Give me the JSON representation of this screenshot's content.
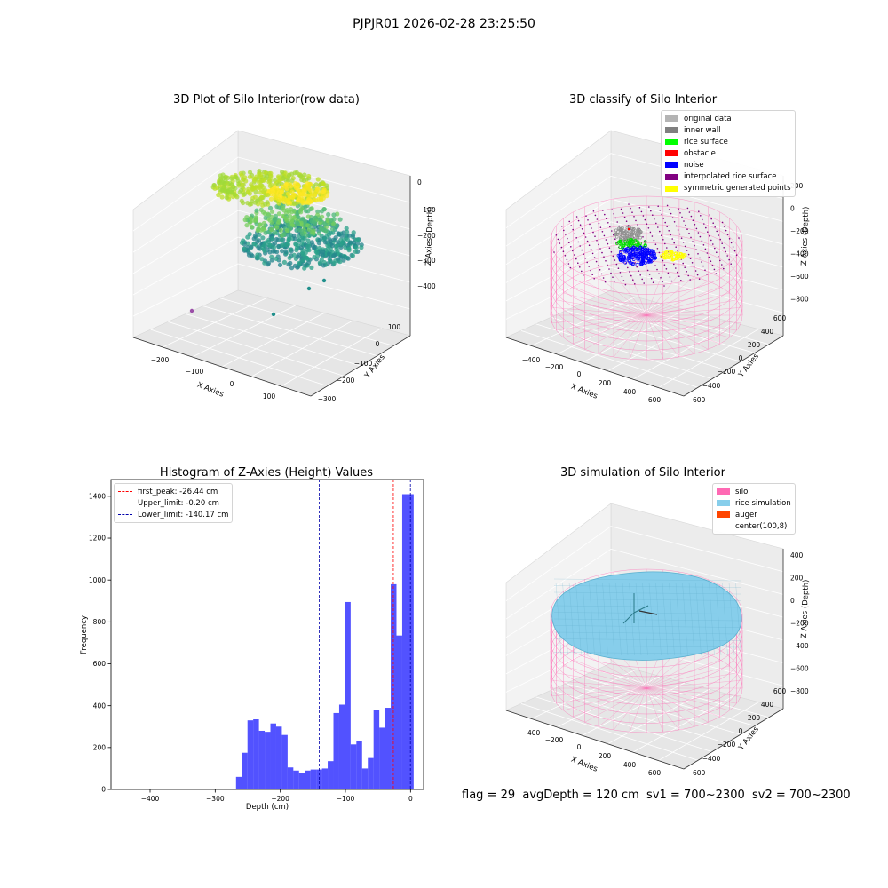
{
  "suptitle": "PJPJR01 2026-02-28 23:25:50",
  "footer": "flag = 29  avgDepth = 120 cm  sv1 = 700~2300  sv2 = 700~2300",
  "colors": {
    "silo_pink": "#ff69b4",
    "rice_blue": "#87ceeb",
    "hist_blue": "#0000ff",
    "peak_red": "#ff0000",
    "limit_blue": "#0000aa"
  },
  "chart_data": [
    {
      "id": "raw",
      "type": "scatter",
      "title": "3D Plot of Silo Interior(row data)",
      "xlabel": "X Axies",
      "ylabel": "Y Axies",
      "zlabel": "Z Axies (Depth)",
      "x_ticks": [
        "−200",
        "−100",
        "0",
        "100"
      ],
      "y_ticks": [
        "100",
        "0",
        "−100",
        "−200",
        "−300"
      ],
      "z_ticks": [
        "0",
        "−100",
        "−200",
        "−300",
        "−400"
      ],
      "xlim": [
        -280,
        170
      ],
      "ylim": [
        -330,
        180
      ],
      "zlim": [
        -440,
        20
      ],
      "colormap": "viridis (by depth)",
      "layers": [
        {
          "name": "upper surface",
          "color": "#d6e32a",
          "cx": -40,
          "cy": 40,
          "z": -30,
          "rx": 120,
          "ry": 90
        },
        {
          "name": "middle layer",
          "color": "#4fb87a",
          "cx": -20,
          "cy": 30,
          "z": -200,
          "rx": 90,
          "ry": 70
        },
        {
          "name": "lower layer",
          "color": "#25858e",
          "cx": 0,
          "cy": 0,
          "z": -290,
          "rx": 110,
          "ry": 80
        }
      ],
      "outliers": [
        {
          "x": -270,
          "y": 60,
          "z": -400,
          "color": "#9b4fa8"
        },
        {
          "x": 20,
          "y": -140,
          "z": -300,
          "color": "#21908c"
        },
        {
          "x": 70,
          "y": -60,
          "z": -330,
          "color": "#21908c"
        },
        {
          "x": 110,
          "y": -20,
          "z": -320,
          "color": "#21908c"
        }
      ]
    },
    {
      "id": "classify",
      "type": "scatter",
      "title": "3D classify of Silo Interior",
      "xlabel": "X Axies",
      "ylabel": "Y Axies",
      "zlabel": "Z Axies (Depth)",
      "x_ticks": [
        "−400",
        "−200",
        "0",
        "200",
        "400",
        "600"
      ],
      "y_ticks": [
        "600",
        "400",
        "200",
        "0",
        "−200",
        "−400",
        "−600"
      ],
      "z_ticks": [
        "200",
        "0",
        "−200",
        "−400",
        "−600",
        "−800"
      ],
      "xlim": [
        -500,
        700
      ],
      "ylim": [
        -650,
        650
      ],
      "zlim": [
        -900,
        300
      ],
      "legend": [
        {
          "label": "original data",
          "color": "#b4b4b4"
        },
        {
          "label": "inner wall",
          "color": "#808080"
        },
        {
          "label": "rice surface",
          "color": "#00ff00"
        },
        {
          "label": "obstacle",
          "color": "#ff0000"
        },
        {
          "label": "noise",
          "color": "#0000ff"
        },
        {
          "label": "interpolated rice surface",
          "color": "#800080"
        },
        {
          "label": "symmetric generated points",
          "color": "#ffff00"
        }
      ]
    },
    {
      "id": "hist",
      "type": "bar",
      "title": "Histogram of Z-Axies (Height) Values",
      "xlabel": "Depth (cm)",
      "ylabel": "Frequency",
      "xlim": [
        -460,
        20
      ],
      "ylim": [
        0,
        1480
      ],
      "x_ticks": [
        -400,
        -300,
        -200,
        -100,
        0
      ],
      "y_ticks": [
        0,
        200,
        400,
        600,
        800,
        1000,
        1200,
        1400
      ],
      "bin_width": 8.8,
      "bin_starts": [
        -268,
        -259.2,
        -250.4,
        -241.6,
        -232.8,
        -224,
        -215.2,
        -206.4,
        -197.6,
        -188.8,
        -180,
        -171.2,
        -162.4,
        -153.6,
        -144.8,
        -136,
        -127.2,
        -118.4,
        -109.6,
        -100.8,
        -92,
        -83.2,
        -74.4,
        -65.6,
        -56.8,
        -48,
        -39.2,
        -30.4,
        -21.6,
        -12.8,
        -4
      ],
      "values": [
        60,
        175,
        330,
        335,
        280,
        275,
        315,
        300,
        260,
        105,
        90,
        80,
        90,
        95,
        95,
        100,
        135,
        365,
        405,
        895,
        215,
        230,
        100,
        150,
        380,
        295,
        390,
        980,
        735,
        1410,
        1410
      ],
      "vlines": [
        {
          "label": "first_peak: -26.44 cm",
          "x": -26.44,
          "color": "#ff0000"
        },
        {
          "label": "Upper_limit: -0.20 cm",
          "x": -0.2,
          "color": "#0000aa"
        },
        {
          "label": "Lower_limit: -140.17 cm",
          "x": -140.17,
          "color": "#0000aa"
        }
      ],
      "legend_position": "upper-left"
    },
    {
      "id": "sim",
      "type": "scatter",
      "title": "3D simulation of Silo Interior",
      "xlabel": "X Axies",
      "ylabel": "Y Axies",
      "zlabel": "Z Axies (Depth)",
      "x_ticks": [
        "−400",
        "−200",
        "0",
        "200",
        "400",
        "600"
      ],
      "y_ticks": [
        "600",
        "400",
        "200",
        "0",
        "−200",
        "−400",
        "−600"
      ],
      "z_ticks": [
        "400",
        "200",
        "0",
        "−200",
        "−400",
        "−600",
        "−800"
      ],
      "xlim": [
        -500,
        700
      ],
      "ylim": [
        -650,
        650
      ],
      "zlim": [
        -900,
        450
      ],
      "legend": [
        {
          "label": "silo",
          "color": "#ff69b4"
        },
        {
          "label": "rice simulation",
          "color": "#87ceeb"
        },
        {
          "label": "auger",
          "color": "#ff4500"
        },
        {
          "label": "center(100,8)",
          "color": "none"
        }
      ]
    }
  ]
}
